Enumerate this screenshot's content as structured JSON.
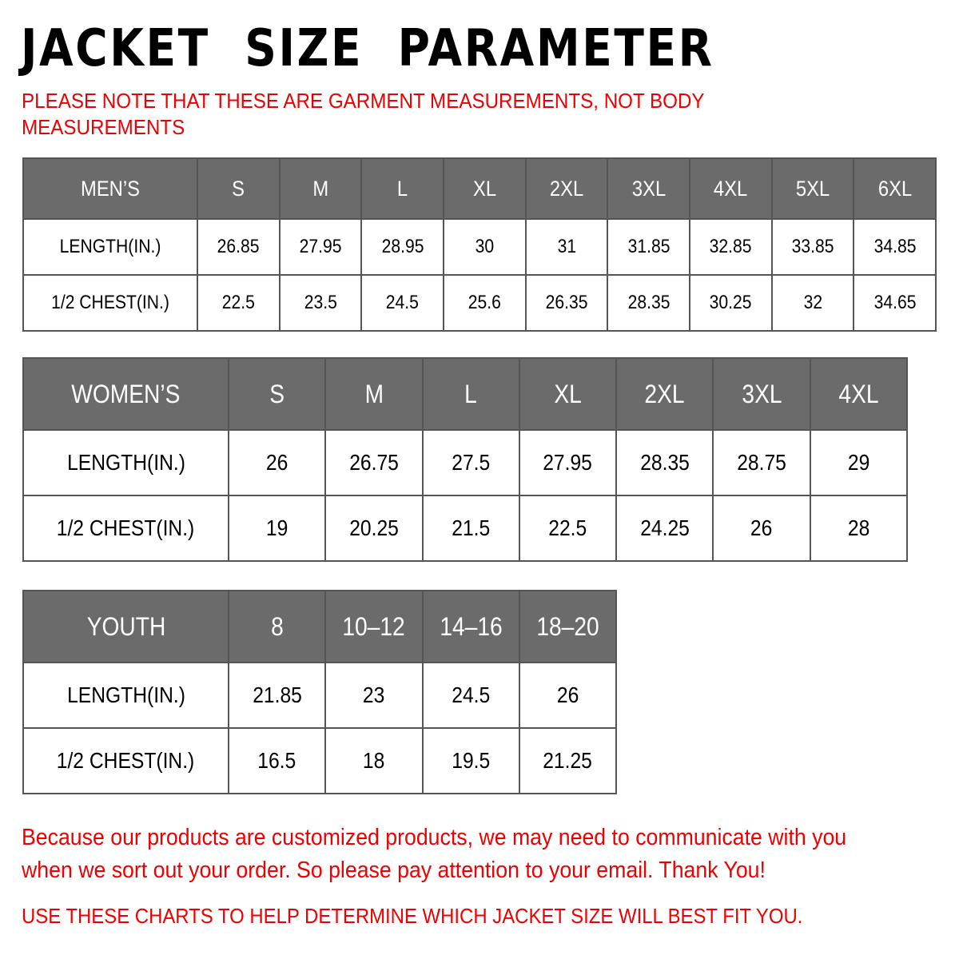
{
  "title": "JACKET  SIZE  PARAMETER",
  "note": "PLEASE NOTE THAT THESE ARE GARMENT MEASUREMENTS, NOT BODY MEASUREMENTS",
  "colors": {
    "header_bg": "#6b6b6b",
    "accent_red": "#ee0000"
  },
  "tables": {
    "men": {
      "headers": [
        "MEN’S",
        "S",
        "M",
        "L",
        "XL",
        "2XL",
        "3XL",
        "4XL",
        "5XL",
        "6XL"
      ],
      "rows": [
        [
          "LENGTH(IN.)",
          "26.85",
          "27.95",
          "28.95",
          "30",
          "31",
          "31.85",
          "32.85",
          "33.85",
          "34.85"
        ],
        [
          "1/2 CHEST(IN.)",
          "22.5",
          "23.5",
          "24.5",
          "25.6",
          "26.35",
          "28.35",
          "30.25",
          "32",
          "34.65"
        ]
      ]
    },
    "women": {
      "headers": [
        "WOMEN’S",
        "S",
        "M",
        "L",
        "XL",
        "2XL",
        "3XL",
        "4XL"
      ],
      "rows": [
        [
          "LENGTH(IN.)",
          "26",
          "26.75",
          "27.5",
          "27.95",
          "28.35",
          "28.75",
          "29"
        ],
        [
          "1/2 CHEST(IN.)",
          "19",
          "20.25",
          "21.5",
          "22.5",
          "24.25",
          "26",
          "28"
        ]
      ]
    },
    "youth": {
      "headers": [
        "YOUTH",
        "8",
        "10–12",
        "14–16",
        "18–20"
      ],
      "rows": [
        [
          "LENGTH(IN.)",
          "21.85",
          "23",
          "24.5",
          "26"
        ],
        [
          "1/2 CHEST(IN.)",
          "16.5",
          "18",
          "19.5",
          "21.25"
        ]
      ]
    }
  },
  "footer": "Because our products are customized products, we may need to communicate with you when we sort out your order. So please pay attention to your email. Thank You!",
  "footer2": "USE THESE CHARTS TO HELP DETERMINE WHICH JACKET SIZE WILL BEST FIT YOU."
}
